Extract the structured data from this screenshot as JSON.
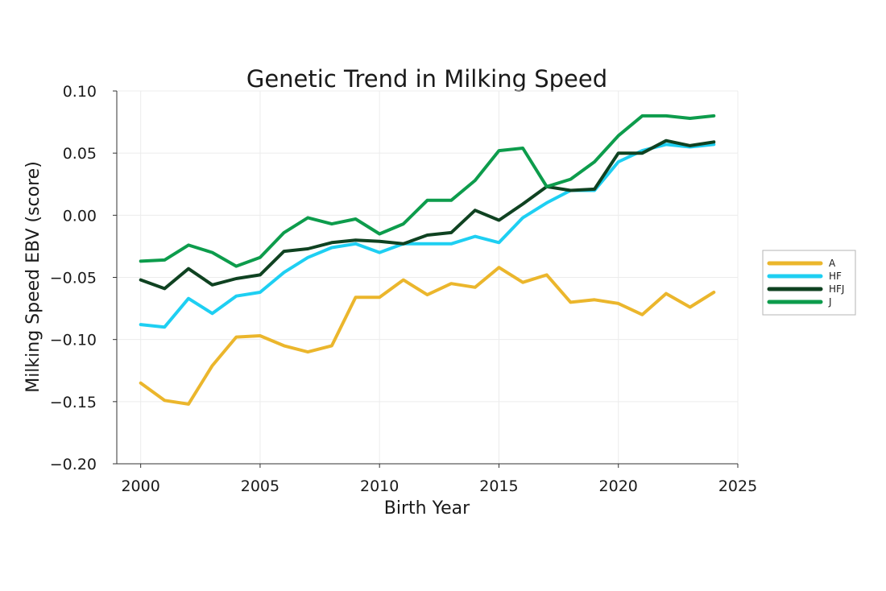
{
  "chart_data": {
    "type": "line",
    "title": "Genetic Trend in Milking Speed",
    "xlabel": "Birth Year",
    "ylabel": "Milking Speed EBV (score)",
    "xlim": [
      1999,
      2025
    ],
    "ylim": [
      -0.2,
      0.1
    ],
    "xticks": [
      2000,
      2005,
      2010,
      2015,
      2020,
      2025
    ],
    "xtick_labels": [
      "2000",
      "2005",
      "2010",
      "2015",
      "2020",
      "2025"
    ],
    "yticks": [
      -0.2,
      -0.15,
      -0.1,
      -0.05,
      0.0,
      0.05,
      0.1
    ],
    "ytick_labels": [
      "−0.20",
      "−0.15",
      "−0.10",
      "−0.05",
      "0.00",
      "0.05",
      "0.10"
    ],
    "grid": true,
    "legend_position": "right",
    "x": [
      2000,
      2001,
      2002,
      2003,
      2004,
      2005,
      2006,
      2007,
      2008,
      2009,
      2010,
      2011,
      2012,
      2013,
      2014,
      2015,
      2016,
      2017,
      2018,
      2019,
      2020,
      2021,
      2022,
      2023,
      2024
    ],
    "series": [
      {
        "name": "A",
        "color": "#EBB62C",
        "values": [
          -0.135,
          -0.149,
          -0.152,
          -0.121,
          -0.098,
          -0.097,
          -0.105,
          -0.11,
          -0.105,
          -0.066,
          -0.066,
          -0.052,
          -0.064,
          -0.055,
          -0.058,
          -0.042,
          -0.054,
          -0.048,
          -0.07,
          -0.068,
          -0.071,
          -0.08,
          -0.063,
          -0.074,
          -0.062
        ]
      },
      {
        "name": "HF",
        "color": "#1ECFF2",
        "values": [
          -0.088,
          -0.09,
          -0.067,
          -0.079,
          -0.065,
          -0.062,
          -0.046,
          -0.034,
          -0.026,
          -0.023,
          -0.03,
          -0.023,
          -0.023,
          -0.023,
          -0.017,
          -0.022,
          -0.002,
          0.01,
          0.02,
          0.02,
          0.043,
          0.052,
          0.057,
          0.055,
          0.057
        ]
      },
      {
        "name": "HFJ",
        "color": "#0F4221",
        "values": [
          -0.052,
          -0.059,
          -0.043,
          -0.056,
          -0.051,
          -0.048,
          -0.029,
          -0.027,
          -0.022,
          -0.02,
          -0.021,
          -0.023,
          -0.016,
          -0.014,
          0.004,
          -0.004,
          0.009,
          0.023,
          0.02,
          0.021,
          0.05,
          0.05,
          0.06,
          0.056,
          0.059
        ]
      },
      {
        "name": "J",
        "color": "#0D9C4C",
        "values": [
          -0.037,
          -0.036,
          -0.024,
          -0.03,
          -0.041,
          -0.034,
          -0.014,
          -0.002,
          -0.007,
          -0.003,
          -0.015,
          -0.007,
          0.012,
          0.012,
          0.028,
          0.052,
          0.054,
          0.023,
          0.029,
          0.043,
          0.064,
          0.08,
          0.08,
          0.078,
          0.08
        ]
      }
    ]
  }
}
